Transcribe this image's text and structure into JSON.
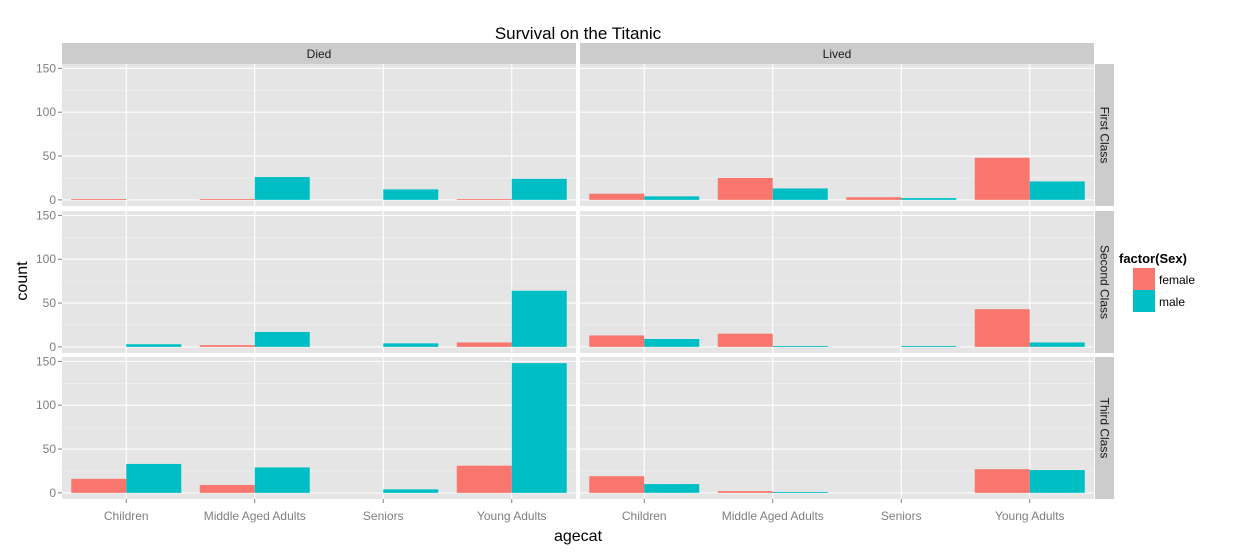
{
  "chart_data": {
    "type": "bar",
    "title": "Survival on the Titanic",
    "xlabel": "agecat",
    "ylabel": "count",
    "categories": [
      "Children",
      "Middle Aged Adults",
      "Seniors",
      "Young Adults"
    ],
    "ylim": [
      0,
      150
    ],
    "yticks": [
      0,
      50,
      100,
      150
    ],
    "grid": true,
    "legend": {
      "title": "factor(Sex)",
      "position": "right",
      "entries": [
        {
          "name": "female",
          "color": "#F8766D"
        },
        {
          "name": "male",
          "color": "#00BFC4"
        }
      ]
    },
    "column_facets": [
      "Died",
      "Lived"
    ],
    "row_facets": [
      "First Class",
      "Second Class",
      "Third Class"
    ],
    "panels": [
      {
        "row": "First Class",
        "col": "Died",
        "series": [
          {
            "name": "female",
            "values": [
              1,
              1,
              0,
              1
            ]
          },
          {
            "name": "male",
            "values": [
              0,
              26,
              12,
              24
            ]
          }
        ]
      },
      {
        "row": "First Class",
        "col": "Lived",
        "series": [
          {
            "name": "female",
            "values": [
              7,
              25,
              3,
              48
            ]
          },
          {
            "name": "male",
            "values": [
              4,
              13,
              2,
              21
            ]
          }
        ]
      },
      {
        "row": "Second Class",
        "col": "Died",
        "series": [
          {
            "name": "female",
            "values": [
              0,
              2,
              0,
              5
            ]
          },
          {
            "name": "male",
            "values": [
              3,
              17,
              4,
              64
            ]
          }
        ]
      },
      {
        "row": "Second Class",
        "col": "Lived",
        "series": [
          {
            "name": "female",
            "values": [
              13,
              15,
              0,
              43
            ]
          },
          {
            "name": "male",
            "values": [
              9,
              1,
              1,
              5
            ]
          }
        ]
      },
      {
        "row": "Third Class",
        "col": "Died",
        "series": [
          {
            "name": "female",
            "values": [
              16,
              9,
              0,
              31
            ]
          },
          {
            "name": "male",
            "values": [
              33,
              29,
              4,
              148
            ]
          }
        ]
      },
      {
        "row": "Third Class",
        "col": "Lived",
        "series": [
          {
            "name": "female",
            "values": [
              19,
              2,
              0,
              27
            ]
          },
          {
            "name": "male",
            "values": [
              10,
              1,
              0,
              26
            ]
          }
        ]
      }
    ]
  }
}
